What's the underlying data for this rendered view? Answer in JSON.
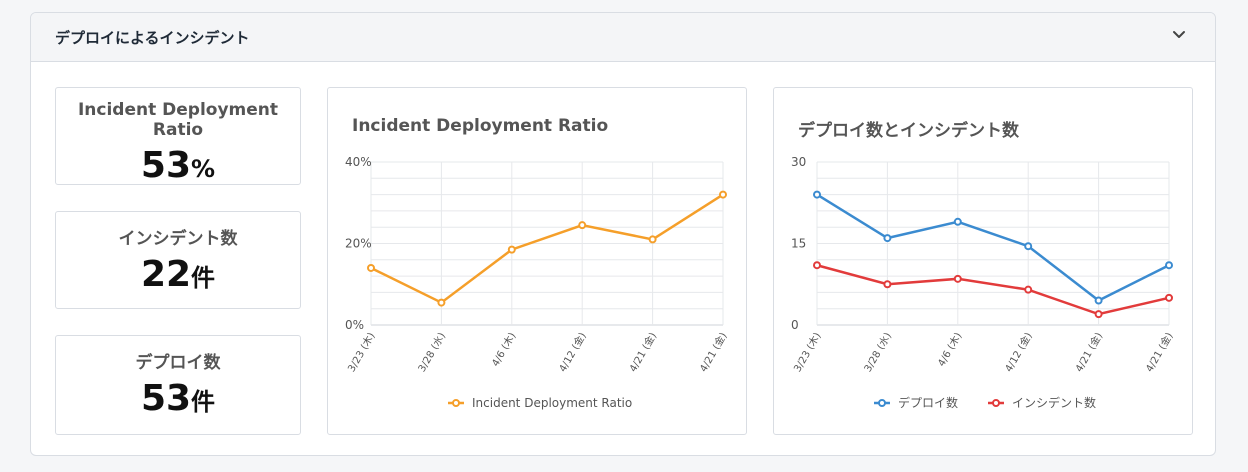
{
  "panel": {
    "title": "デプロイによるインシデント"
  },
  "stats": [
    {
      "label": "Incident Deployment Ratio",
      "value": "53",
      "unit": "%"
    },
    {
      "label": "インシデント数",
      "value": "22",
      "unit": "件"
    },
    {
      "label": "デプロイ数",
      "value": "53",
      "unit": "件"
    }
  ],
  "colors": {
    "orange": "#f59f2a",
    "blue": "#3b8bd0",
    "red": "#e23b3b"
  },
  "chart_data": [
    {
      "type": "line",
      "title": "Incident Deployment Ratio",
      "categories": [
        "3/23 (木)",
        "3/28 (水)",
        "4/6 (木)",
        "4/12 (金)",
        "4/21 (金)",
        "4/21 (金)"
      ],
      "y_ticks": [
        "0%",
        "20%",
        "40%"
      ],
      "ylim": [
        0,
        40
      ],
      "series": [
        {
          "name": "Incident Deployment Ratio",
          "color": "#f59f2a",
          "values": [
            14,
            5.5,
            18.5,
            24.5,
            21,
            32
          ]
        }
      ],
      "legend": "bottom"
    },
    {
      "type": "line",
      "title": "デプロイ数とインシデント数",
      "categories": [
        "3/23 (木)",
        "3/28 (水)",
        "4/6 (木)",
        "4/12 (金)",
        "4/21 (金)",
        "4/21 (金)"
      ],
      "y_ticks": [
        "0",
        "15",
        "30"
      ],
      "ylim": [
        0,
        30
      ],
      "series": [
        {
          "name": "デプロイ数",
          "color": "#3b8bd0",
          "values": [
            24,
            16,
            19,
            14.5,
            4.5,
            11
          ]
        },
        {
          "name": "インシデント数",
          "color": "#e23b3b",
          "values": [
            11,
            7.5,
            8.5,
            6.5,
            2,
            5
          ]
        }
      ],
      "legend": "bottom"
    }
  ]
}
